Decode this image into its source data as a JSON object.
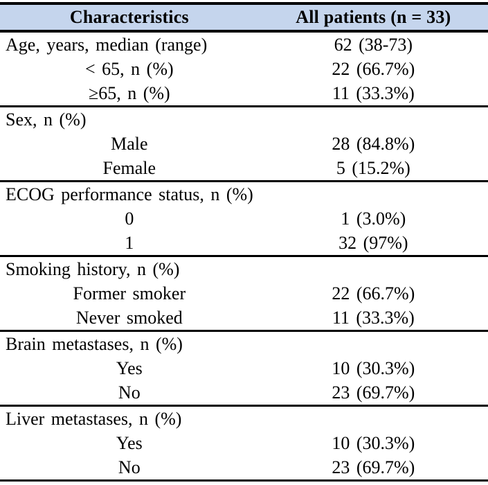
{
  "table": {
    "header": {
      "characteristics": "Characteristics",
      "all_patients": "All patients (n = 33)"
    },
    "rows": [
      {
        "label": "Age, years, median (range)",
        "value": "62 (38-73)"
      },
      {
        "label": "< 65, n (%)",
        "value": "22 (66.7%)"
      },
      {
        "label": "≥65, n (%)",
        "value": "11 (33.3%)"
      },
      {
        "label": "Sex, n (%)",
        "value": ""
      },
      {
        "label": "Male",
        "value": "28 (84.8%)"
      },
      {
        "label": "Female",
        "value": "5 (15.2%)"
      },
      {
        "label": "ECOG performance status, n (%)",
        "value": ""
      },
      {
        "label": "0",
        "value": "1 (3.0%)"
      },
      {
        "label": "1",
        "value": "32 (97%)"
      },
      {
        "label": "Smoking history, n (%)",
        "value": ""
      },
      {
        "label": "Former smoker",
        "value": "22 (66.7%)"
      },
      {
        "label": "Never smoked",
        "value": "11 (33.3%)"
      },
      {
        "label": "Brain metastases, n (%)",
        "value": ""
      },
      {
        "label": "Yes",
        "value": "10 (30.3%)"
      },
      {
        "label": "No",
        "value": "23 (69.7%)"
      },
      {
        "label": "Liver metastases, n (%)",
        "value": ""
      },
      {
        "label": "Yes",
        "value": "10 (30.3%)"
      },
      {
        "label": "No",
        "value": "23 (69.7%)"
      }
    ],
    "colors": {
      "header_background": "#c5d5ed",
      "rule": "#000000",
      "text": "#000000"
    }
  }
}
